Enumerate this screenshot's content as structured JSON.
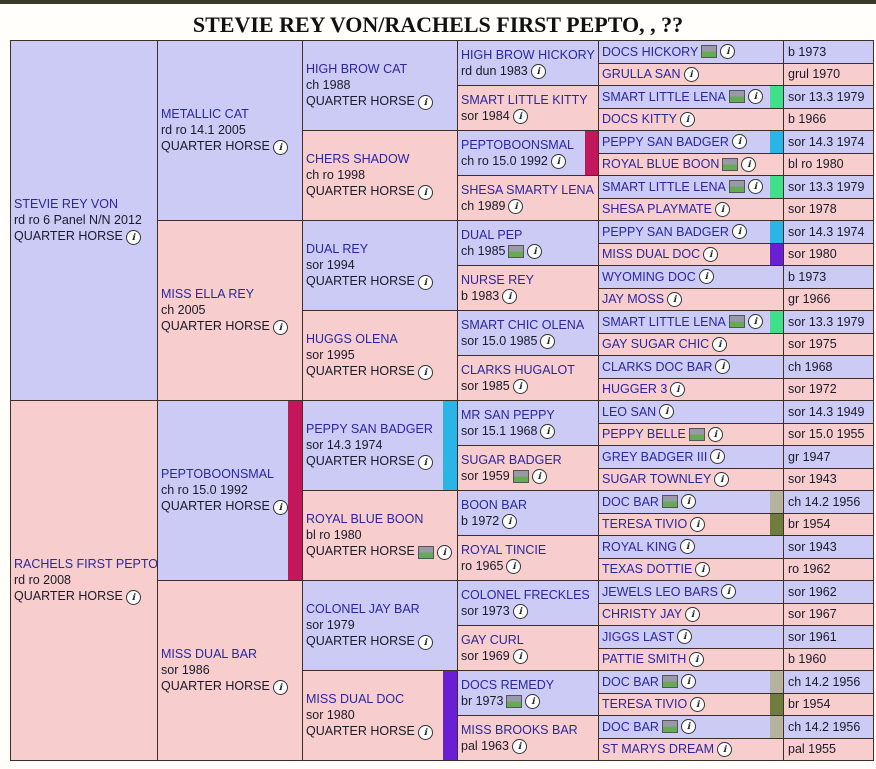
{
  "title": "STEVIE REY VON/RACHELS FIRST PEPTO, , ??",
  "colors": {
    "blue": "#cbcbf6",
    "pink": "#f7cdcd",
    "magenta": "#c2185b",
    "cyan": "#29b6e6",
    "green": "#3fe08a",
    "purple": "#6a1fd4",
    "olive": "#b5b3a0",
    "darkgreen": "#6e7d3c"
  },
  "gen1": [
    {
      "name": "STEVIE REY VON",
      "info": "rd ro 6 Panel N/N 2012",
      "breed": "QUARTER HORSE",
      "color": "blue"
    },
    {
      "name": "RACHELS FIRST PEPTO",
      "info": "rd ro 2008",
      "breed": "QUARTER HORSE",
      "color": "pink"
    }
  ],
  "gen2": [
    {
      "name": "METALLIC CAT",
      "info": "rd ro 14.1 2005",
      "breed": "QUARTER HORSE",
      "color": "blue"
    },
    {
      "name": "MISS ELLA REY",
      "info": "ch 2005",
      "breed": "QUARTER HORSE",
      "color": "pink"
    },
    {
      "name": "PEPTOBOONSMAL",
      "info": "ch ro 15.0 1992",
      "breed": "QUARTER HORSE",
      "color": "blue",
      "strip": "magenta"
    },
    {
      "name": "MISS DUAL BAR",
      "info": "sor 1986",
      "breed": "QUARTER HORSE",
      "color": "pink"
    }
  ],
  "gen3": [
    {
      "name": "HIGH BROW CAT",
      "info": "ch 1988",
      "breed": "QUARTER HORSE",
      "color": "blue"
    },
    {
      "name": "CHERS SHADOW",
      "info": "ch ro 1998",
      "breed": "QUARTER HORSE",
      "color": "pink"
    },
    {
      "name": "DUAL REY",
      "info": "sor 1994",
      "breed": "QUARTER HORSE",
      "color": "blue"
    },
    {
      "name": "HUGGS OLENA",
      "info": "sor 1995",
      "breed": "QUARTER HORSE",
      "color": "pink"
    },
    {
      "name": "PEPPY SAN BADGER",
      "info": "sor 14.3 1974",
      "breed": "QUARTER HORSE",
      "color": "blue",
      "strip": "cyan"
    },
    {
      "name": "ROYAL BLUE BOON",
      "info": "bl ro 1980",
      "breed": "QUARTER HORSE",
      "color": "pink",
      "photo": true
    },
    {
      "name": "COLONEL JAY BAR",
      "info": "sor 1979",
      "breed": "QUARTER HORSE",
      "color": "blue"
    },
    {
      "name": "MISS DUAL DOC",
      "info": "sor 1980",
      "breed": "QUARTER HORSE",
      "color": "pink",
      "strip": "purple"
    }
  ],
  "gen4": [
    {
      "name": "HIGH BROW HICKORY",
      "info": "rd dun 1983",
      "color": "blue"
    },
    {
      "name": "SMART LITTLE KITTY",
      "info": "sor 1984",
      "color": "pink"
    },
    {
      "name": "PEPTOBOONSMAL",
      "info": "ch ro 15.0 1992",
      "color": "blue",
      "strip": "magenta"
    },
    {
      "name": "SHESA SMARTY LENA",
      "info": "ch 1989",
      "color": "pink"
    },
    {
      "name": "DUAL PEP",
      "info": "ch 1985",
      "color": "blue",
      "photo": true
    },
    {
      "name": "NURSE REY",
      "info": "b 1983",
      "color": "pink"
    },
    {
      "name": "SMART CHIC OLENA",
      "info": "sor 15.0 1985",
      "color": "blue"
    },
    {
      "name": "CLARKS HUGALOT",
      "info": "sor 1985",
      "color": "pink"
    },
    {
      "name": "MR SAN PEPPY",
      "info": "sor 15.1 1968",
      "color": "blue"
    },
    {
      "name": "SUGAR BADGER",
      "info": "sor 1959",
      "color": "pink",
      "photo": true
    },
    {
      "name": "BOON BAR",
      "info": "b 1972",
      "color": "blue"
    },
    {
      "name": "ROYAL TINCIE",
      "info": "ro 1965",
      "color": "pink"
    },
    {
      "name": "COLONEL FRECKLES",
      "info": "sor 1973",
      "color": "blue"
    },
    {
      "name": "GAY CURL",
      "info": "sor 1969",
      "color": "pink"
    },
    {
      "name": "DOCS REMEDY",
      "info": "br 1973",
      "color": "blue",
      "photo": true
    },
    {
      "name": "MISS BROOKS BAR",
      "info": "pal 1963",
      "color": "pink"
    }
  ],
  "gen5": [
    {
      "name": "DOCS HICKORY",
      "info": "b 1973",
      "color": "blue",
      "photo": true
    },
    {
      "name": "GRULLA SAN",
      "info": "grul 1970",
      "color": "pink"
    },
    {
      "name": "SMART LITTLE LENA",
      "info": "sor 13.3 1979",
      "color": "blue",
      "photo": true,
      "strip": "green"
    },
    {
      "name": "DOCS KITTY",
      "info": "b 1966",
      "color": "pink"
    },
    {
      "name": "PEPPY SAN BADGER",
      "info": "sor 14.3 1974",
      "color": "blue",
      "strip": "cyan"
    },
    {
      "name": "ROYAL BLUE BOON",
      "info": "bl ro 1980",
      "color": "pink",
      "photo": true
    },
    {
      "name": "SMART LITTLE LENA",
      "info": "sor 13.3 1979",
      "color": "blue",
      "photo": true,
      "strip": "green"
    },
    {
      "name": "SHESA PLAYMATE",
      "info": "sor 1978",
      "color": "pink"
    },
    {
      "name": "PEPPY SAN BADGER",
      "info": "sor 14.3 1974",
      "color": "blue",
      "strip": "cyan"
    },
    {
      "name": "MISS DUAL DOC",
      "info": "sor 1980",
      "color": "pink",
      "strip": "purple"
    },
    {
      "name": "WYOMING DOC",
      "info": "b 1973",
      "color": "blue"
    },
    {
      "name": "JAY MOSS",
      "info": "gr 1966",
      "color": "pink"
    },
    {
      "name": "SMART LITTLE LENA",
      "info": "sor 13.3 1979",
      "color": "blue",
      "photo": true,
      "strip": "green"
    },
    {
      "name": "GAY SUGAR CHIC",
      "info": "sor 1975",
      "color": "pink"
    },
    {
      "name": "CLARKS DOC BAR",
      "info": "ch 1968",
      "color": "blue"
    },
    {
      "name": "HUGGER 3",
      "info": "sor 1972",
      "color": "pink"
    },
    {
      "name": "LEO SAN",
      "info": "sor 14.3 1949",
      "color": "blue"
    },
    {
      "name": "PEPPY BELLE",
      "info": "sor 15.0 1955",
      "color": "pink",
      "photo": true
    },
    {
      "name": "GREY BADGER III",
      "info": "gr 1947",
      "color": "blue"
    },
    {
      "name": "SUGAR TOWNLEY",
      "info": "sor 1943",
      "color": "pink"
    },
    {
      "name": "DOC BAR",
      "info": "ch 14.2 1956",
      "color": "blue",
      "photo": true,
      "strip": "olive"
    },
    {
      "name": "TERESA TIVIO",
      "info": "br 1954",
      "color": "pink",
      "strip": "darkgreen"
    },
    {
      "name": "ROYAL KING",
      "info": "sor 1943",
      "color": "blue"
    },
    {
      "name": "TEXAS DOTTIE",
      "info": "ro 1962",
      "color": "pink"
    },
    {
      "name": "JEWELS LEO BARS",
      "info": "sor 1962",
      "color": "blue"
    },
    {
      "name": "CHRISTY JAY",
      "info": "sor 1967",
      "color": "pink"
    },
    {
      "name": "JIGGS LAST",
      "info": "sor 1961",
      "color": "blue"
    },
    {
      "name": "PATTIE SMITH",
      "info": "b 1960",
      "color": "pink"
    },
    {
      "name": "DOC BAR",
      "info": "ch 14.2 1956",
      "color": "blue",
      "photo": true,
      "strip": "olive"
    },
    {
      "name": "TERESA TIVIO",
      "info": "br 1954",
      "color": "pink",
      "strip": "darkgreen"
    },
    {
      "name": "DOC BAR",
      "info": "ch 14.2 1956",
      "color": "blue",
      "photo": true,
      "strip": "olive"
    },
    {
      "name": "ST MARYS DREAM",
      "info": "pal 1955",
      "color": "pink"
    }
  ]
}
